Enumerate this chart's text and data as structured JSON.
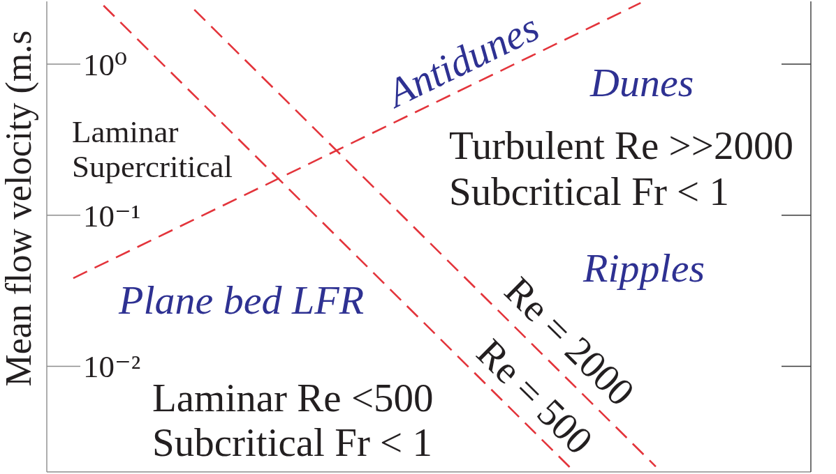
{
  "chart_data": {
    "type": "line",
    "ylabel": "Mean flow velocity (m.s",
    "log": true,
    "ylim": [
      0.002,
      2.6
    ],
    "yticks": [
      {
        "value": 1,
        "label": "10⁰"
      },
      {
        "value": 0.1,
        "label": "10⁻¹"
      },
      {
        "value": 0.01,
        "label": "10⁻²"
      }
    ],
    "tick_labels": "y",
    "marker": "none",
    "line_style": "dashed",
    "categories": [
      null,
      null,
      null,
      null,
      null,
      null,
      null,
      null,
      null,
      null,
      null,
      null,
      null,
      null,
      null,
      null,
      null,
      null,
      null,
      null,
      null,
      null,
      null,
      null,
      null,
      null,
      null,
      null,
      null,
      null,
      null,
      null,
      null,
      null,
      null,
      null,
      null,
      null,
      null,
      null,
      null,
      null,
      null,
      null,
      null,
      null,
      null,
      null,
      null,
      null,
      null,
      null,
      null,
      null,
      null,
      null,
      null,
      null,
      null,
      null,
      null,
      null,
      null,
      null,
      null,
      null,
      null,
      null,
      null,
      null,
      null,
      null,
      null,
      null,
      null,
      null,
      null,
      null,
      null,
      null,
      null,
      null,
      null,
      null,
      null,
      null,
      null,
      null,
      null,
      null,
      null,
      null,
      null,
      null,
      null,
      null,
      null,
      null,
      null,
      null,
      null
    ],
    "series": [
      {
        "name": "Re = 500",
        "color": "#e3343b",
        "values": [
          null,
          null,
          null,
          null,
          null,
          null,
          null,
          2.44,
          null,
          null,
          null,
          null,
          null,
          null,
          null,
          null,
          null,
          null,
          null,
          null,
          null,
          null,
          null,
          null,
          null,
          null,
          null,
          null,
          null,
          null,
          null,
          null,
          null,
          null,
          null,
          null,
          null,
          null,
          null,
          null,
          null,
          null,
          null,
          null,
          null,
          null,
          null,
          null,
          null,
          null,
          null,
          null,
          null,
          null,
          null,
          null,
          null,
          null,
          null,
          null,
          null,
          null,
          null,
          null,
          null,
          null,
          null,
          null,
          null,
          0.00206,
          null,
          null,
          null,
          null,
          null,
          null,
          null,
          null,
          null,
          null,
          null,
          null,
          null,
          null,
          null,
          null,
          null,
          null,
          null,
          null,
          null,
          null,
          null,
          null,
          null,
          null,
          null,
          null,
          null,
          null,
          null
        ]
      },
      {
        "name": "Re = 2000",
        "color": "#e3343b",
        "values": [
          null,
          null,
          null,
          null,
          null,
          null,
          null,
          null,
          null,
          null,
          null,
          null,
          null,
          null,
          null,
          null,
          null,
          null,
          null,
          2.29,
          null,
          null,
          null,
          null,
          null,
          null,
          null,
          null,
          null,
          null,
          null,
          null,
          null,
          null,
          null,
          null,
          null,
          null,
          null,
          null,
          null,
          null,
          null,
          null,
          null,
          null,
          null,
          null,
          null,
          null,
          null,
          null,
          null,
          null,
          null,
          null,
          null,
          null,
          null,
          null,
          null,
          null,
          null,
          null,
          null,
          null,
          null,
          null,
          null,
          null,
          null,
          null,
          null,
          null,
          null,
          null,
          null,
          null,
          null,
          null,
          0.00217,
          null,
          null,
          null,
          null,
          null,
          null,
          null,
          null,
          null,
          null,
          null,
          null,
          null,
          null,
          null,
          null,
          null,
          null,
          null,
          null
        ]
      },
      {
        "color": "#e3343b",
        "values": [
          null,
          null,
          null,
          0.0383,
          null,
          null,
          null,
          null,
          null,
          null,
          null,
          null,
          null,
          null,
          null,
          null,
          null,
          null,
          null,
          null,
          null,
          null,
          null,
          null,
          null,
          null,
          null,
          null,
          null,
          null,
          null,
          null,
          null,
          null,
          null,
          null,
          null,
          null,
          null,
          null,
          null,
          null,
          null,
          null,
          null,
          null,
          null,
          null,
          null,
          null,
          null,
          null,
          null,
          null,
          null,
          null,
          null,
          null,
          null,
          null,
          null,
          null,
          null,
          null,
          null,
          null,
          null,
          null,
          null,
          null,
          null,
          null,
          null,
          null,
          null,
          null,
          null,
          null,
          2.54,
          null,
          null,
          null,
          null,
          null,
          null,
          null,
          null,
          null,
          null,
          null,
          null,
          null,
          null,
          null,
          null,
          null,
          null,
          null,
          null,
          null,
          null
        ]
      }
    ],
    "annotations": [
      "Antidunes",
      "Dunes",
      "Laminar\nSupercritical",
      "Turbulent Re >>2000\nSubcritical Fr < 1",
      "Ripples",
      "Plane bed LFR",
      "Laminar Re <500\nSubcritical Fr < 1"
    ]
  }
}
